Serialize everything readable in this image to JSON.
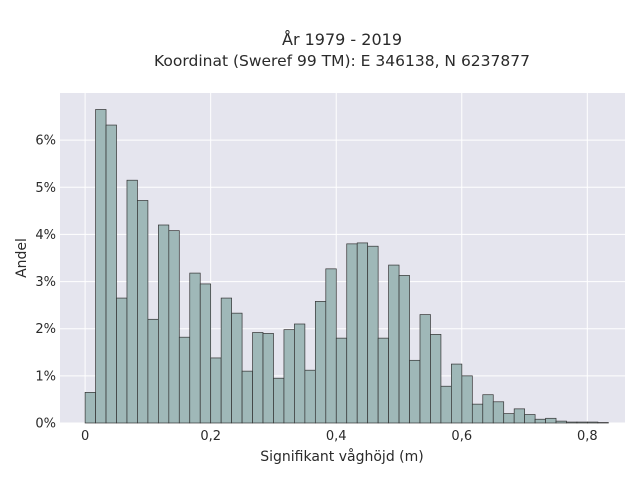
{
  "chart_data": {
    "type": "bar",
    "title_line1": "År 1979 - 2019",
    "title_line2": "Koordinat (Sweref 99 TM): E 346138, N 6237877",
    "xlabel": "Signifikant våghöjd (m)",
    "ylabel": "Andel",
    "xlim": [
      -0.04,
      0.86
    ],
    "ylim": [
      0,
      0.07
    ],
    "grid": true,
    "bin_width": 0.01667,
    "bin_start": 0.0,
    "x_ticks": [
      {
        "value": 0,
        "label": "0"
      },
      {
        "value": 0.2,
        "label": "0,2"
      },
      {
        "value": 0.4,
        "label": "0,4"
      },
      {
        "value": 0.6,
        "label": "0,6"
      },
      {
        "value": 0.8,
        "label": "0,8"
      }
    ],
    "y_ticks": [
      {
        "value": 0,
        "label": "0%"
      },
      {
        "value": 0.01,
        "label": "1%"
      },
      {
        "value": 0.02,
        "label": "2%"
      },
      {
        "value": 0.03,
        "label": "3%"
      },
      {
        "value": 0.04,
        "label": "4%"
      },
      {
        "value": 0.05,
        "label": "5%"
      },
      {
        "value": 0.06,
        "label": "6%"
      }
    ],
    "values": [
      0.0065,
      0.0665,
      0.0632,
      0.0265,
      0.0515,
      0.0472,
      0.022,
      0.042,
      0.0408,
      0.0182,
      0.0318,
      0.0295,
      0.0138,
      0.0265,
      0.0233,
      0.011,
      0.0192,
      0.019,
      0.0095,
      0.0198,
      0.021,
      0.0112,
      0.0258,
      0.0327,
      0.018,
      0.038,
      0.0382,
      0.0375,
      0.018,
      0.0335,
      0.0313,
      0.0133,
      0.023,
      0.0188,
      0.0078,
      0.0125,
      0.01,
      0.004,
      0.006,
      0.0045,
      0.002,
      0.003,
      0.0018,
      0.0008,
      0.001,
      0.0004,
      0.0002,
      0.0002,
      0.0002,
      0.0001
    ],
    "colors": {
      "plot_bg": "#e5e5ee",
      "grid": "#ffffff",
      "bar_fill": "#9fb8b8",
      "bar_stroke": "#333333"
    }
  }
}
